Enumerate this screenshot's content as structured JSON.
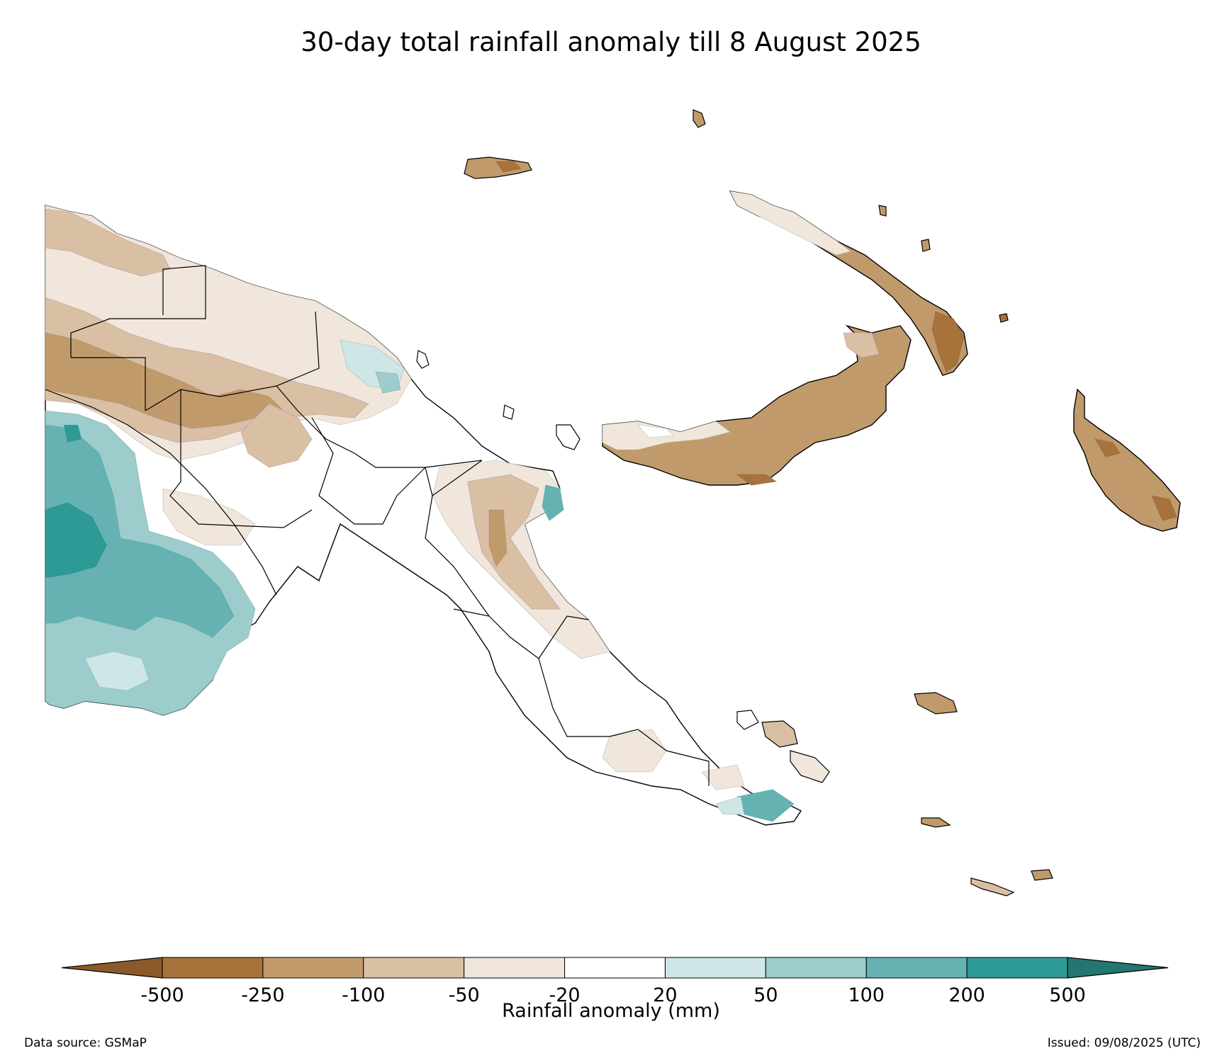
{
  "title": "30-day total rainfall anomaly till 8 August 2025",
  "colorbar": {
    "label": "Rainfall anomaly (mm)",
    "ticks": [
      "-500",
      "-250",
      "-100",
      "-50",
      "-20",
      "20",
      "50",
      "100",
      "200",
      "500"
    ],
    "colors": [
      "#8b5a2b",
      "#a8733a",
      "#c19a6b",
      "#d9bfa3",
      "#f0e6dc",
      "#ffffff",
      "#cfe6e6",
      "#9ccccc",
      "#66b2b2",
      "#2e9a96",
      "#237672"
    ],
    "extend": "both"
  },
  "footer": {
    "source": "Data source: GSMaP",
    "issued": "Issued: 09/08/2025 (UTC)"
  },
  "palette": {
    "dry_extreme": "#a8733a",
    "dry_strong": "#c19a6b",
    "dry_moderate": "#d9bfa3",
    "dry_light": "#f0e6dc",
    "neutral": "#ffffff",
    "wet_light": "#cfe6e6",
    "wet_moderate": "#9ccccc",
    "wet_strong": "#66b2b2",
    "wet_extreme": "#2e9a96"
  }
}
